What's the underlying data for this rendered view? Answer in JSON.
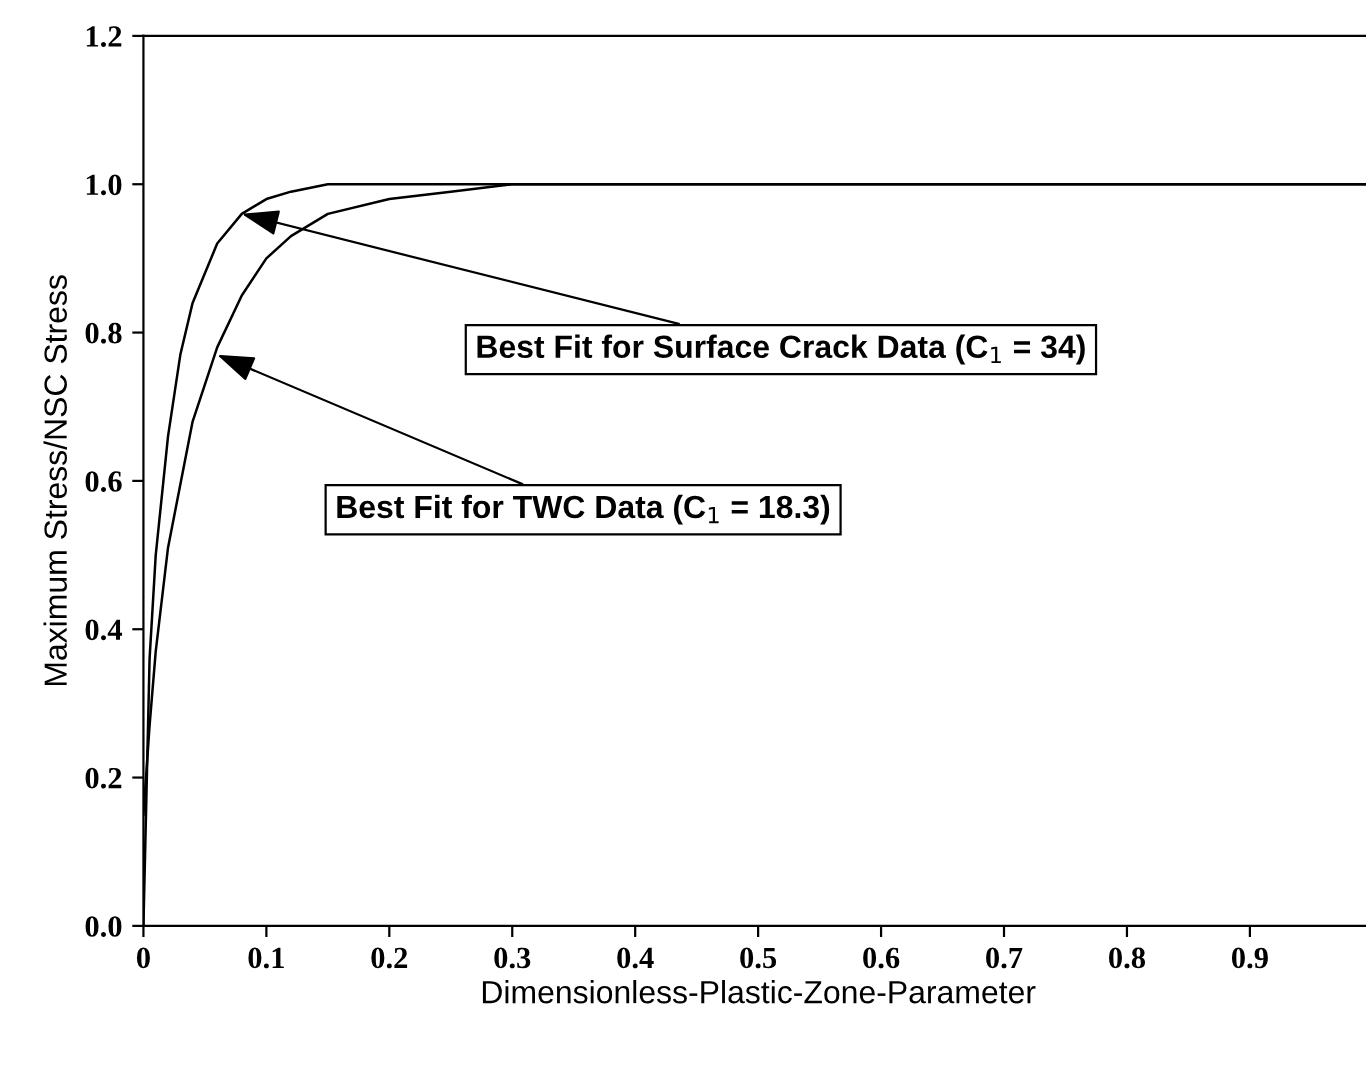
{
  "chart_data": {
    "type": "line",
    "xlabel": "Dimensionless-Plastic-Zone-Parameter",
    "ylabel": "Maximum Stress/NSC Stress",
    "series": [
      {
        "color": "#000000",
        "x": [
          0,
          0.005,
          0.01,
          0.02,
          0.03,
          0.04,
          0.05,
          0.06,
          0.08,
          0.1,
          0.12,
          0.15,
          0.2,
          0.3,
          0.5,
          1.0
        ],
        "values": [
          0,
          0.36,
          0.5,
          0.66,
          0.77,
          0.84,
          0.88,
          0.92,
          0.96,
          0.98,
          0.99,
          1.0,
          1.0,
          1.0,
          1.0,
          1.0
        ]
      },
      {
        "color": "#000000",
        "x": [
          0,
          0.005,
          0.01,
          0.02,
          0.04,
          0.06,
          0.08,
          0.1,
          0.12,
          0.15,
          0.2,
          0.25,
          0.3,
          0.4,
          0.5,
          1.0
        ],
        "values": [
          0.15,
          0.27,
          0.37,
          0.51,
          0.68,
          0.78,
          0.85,
          0.9,
          0.93,
          0.96,
          0.98,
          0.99,
          1.0,
          1.0,
          1.0,
          1.0
        ]
      }
    ],
    "annotations": [
      {
        "text": "Best Fit for Surface Crack Data (C$_{1}$ = 34)",
        "x": 0.08,
        "y": 0.96
      },
      {
        "text": "Best Fit for TWC Data (C$_{1}$ = 18.3)",
        "x": 0.06,
        "y": 0.77
      }
    ],
    "xlim": [
      0,
      1.0
    ],
    "ylim": [
      0,
      1.2
    ],
    "xticks": [
      {
        "value": 0,
        "label": "0"
      },
      0.1,
      0.2,
      0.3,
      0.4,
      0.5,
      0.6,
      0.7,
      0.8,
      0.9,
      {
        "value": 1.0,
        "label": null
      }
    ],
    "yticks": [
      {
        "value": 0,
        "label": "0.0"
      },
      0.2,
      0.4,
      0.6,
      0.8,
      {
        "value": 1.0,
        "label": "1.0"
      },
      {
        "value": 1.2,
        "label": "1.2"
      }
    ],
    "grid": false,
    "marker": "none",
    "line_style": "solid"
  }
}
